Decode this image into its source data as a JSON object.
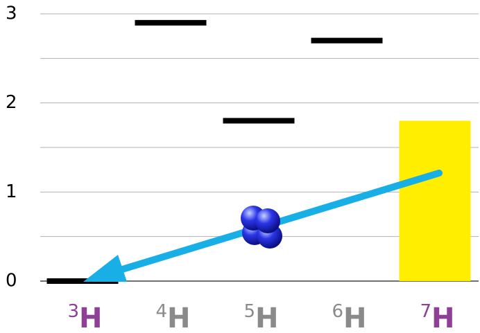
{
  "chart_data": {
    "type": "level",
    "categories": [
      {
        "mass_number": "3",
        "symbol": "H"
      },
      {
        "mass_number": "4",
        "symbol": "H"
      },
      {
        "mass_number": "5",
        "symbol": "H"
      },
      {
        "mass_number": "6",
        "symbol": "H"
      },
      {
        "mass_number": "7",
        "symbol": "H"
      }
    ],
    "category_colors": [
      "#8e3f96",
      "#8a8a8a",
      "#8a8a8a",
      "#8a8a8a",
      "#8e3f96"
    ],
    "values": [
      0,
      2.9,
      1.8,
      2.7,
      null
    ],
    "color": "#000000",
    "highlight_bar": {
      "category": 4,
      "value": 1.8,
      "color": "#ffee00"
    },
    "ylim": [
      0,
      3
    ],
    "yticks": [
      0,
      1,
      2,
      3
    ],
    "minor_yticks": [
      0.5,
      1.5,
      2.5
    ],
    "grid": true
  }
}
